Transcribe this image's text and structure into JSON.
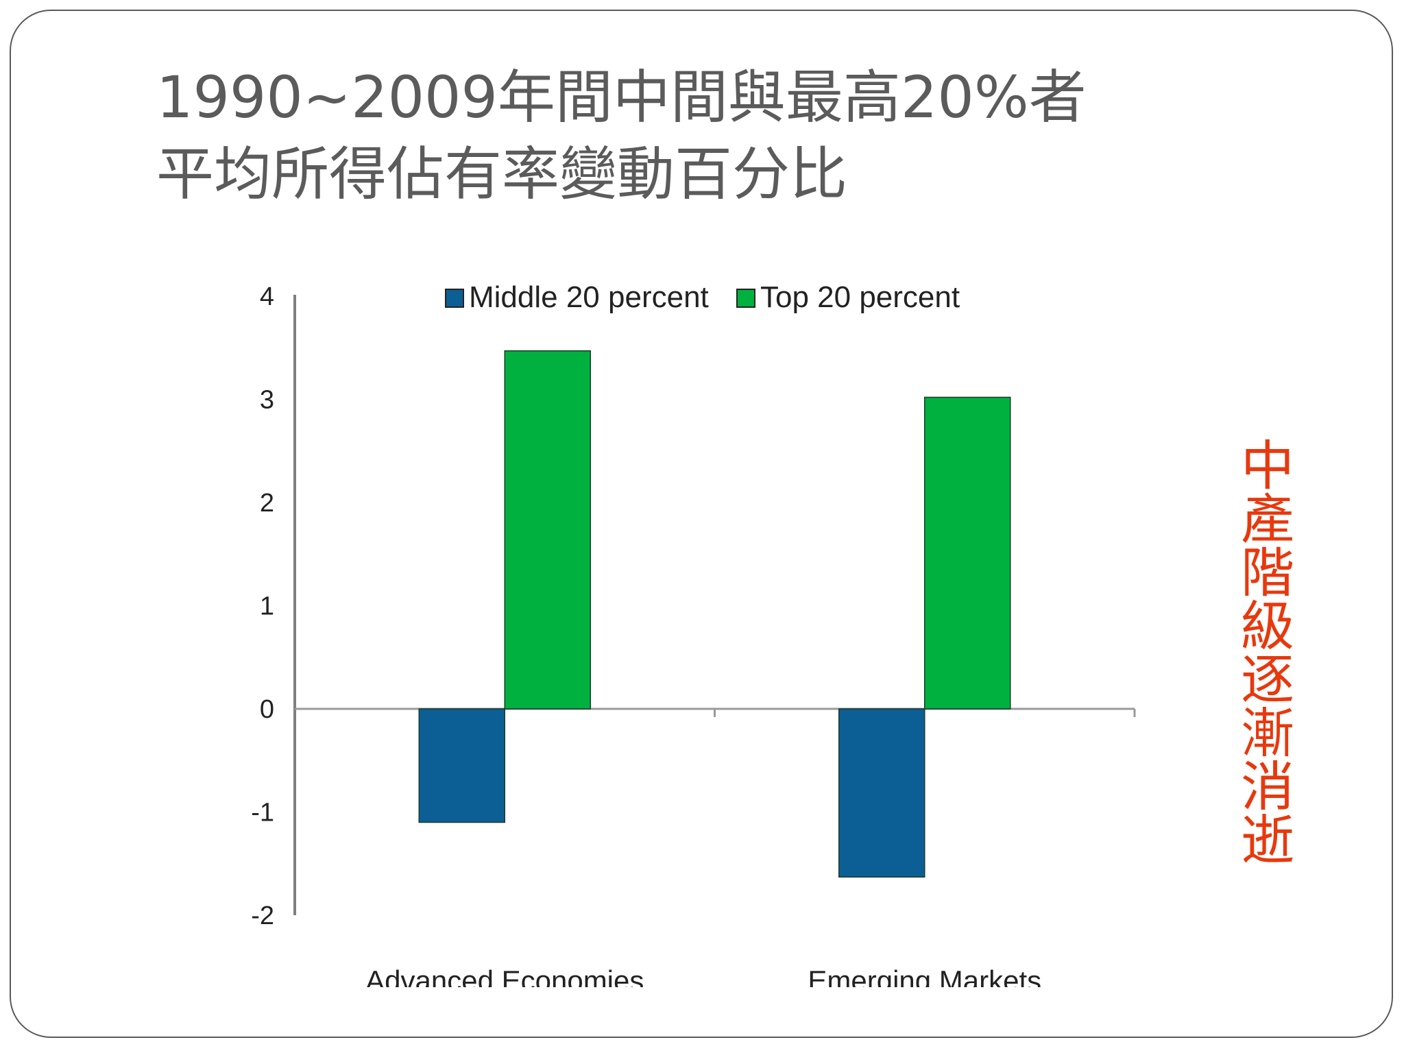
{
  "slide": {
    "title_line1": "1990~2009年間中間與最高20%者",
    "title_line2": "平均所得佔有率變動百分比",
    "side_note": "中產階級逐漸消逝",
    "side_note_color": "#e8380d",
    "title_color": "#5b5b5b"
  },
  "chart_data": {
    "type": "bar",
    "title": "",
    "xlabel": "",
    "ylabel": "",
    "ylim": [
      -2,
      4
    ],
    "y_ticks": [
      4,
      3,
      2,
      1,
      0,
      -1,
      -2
    ],
    "categories": [
      "Advanced Economies",
      "Emerging Markets"
    ],
    "legend_position": "top",
    "grid": false,
    "series": [
      {
        "name": "Middle 20 percent",
        "color": "#0b5f94",
        "values": [
          -1.1,
          -1.63
        ]
      },
      {
        "name": "Top 20 percent",
        "color": "#00b140",
        "values": [
          3.47,
          3.02
        ]
      }
    ]
  }
}
